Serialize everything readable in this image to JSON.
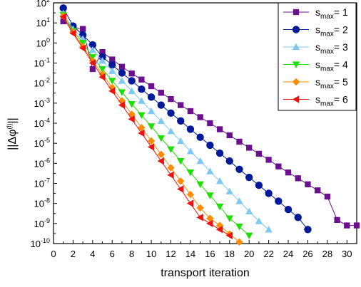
{
  "chart_data": {
    "type": "scatter",
    "xlabel": "transport iteration",
    "ylabel": "||Δφ(l)||",
    "ylabel_base": "||Δφ",
    "ylabel_sup": "(l)",
    "ylabel_end": "||",
    "xlim": [
      0,
      31
    ],
    "ylim_exp": [
      -10,
      2
    ],
    "yscale": "log",
    "x_ticks": [
      "0",
      "2",
      "4",
      "6",
      "8",
      "10",
      "12",
      "14",
      "16",
      "18",
      "20",
      "22",
      "24",
      "26",
      "28",
      "30"
    ],
    "y_tick_base": "10",
    "y_tick_exps": [
      "-10",
      "-9",
      "-8",
      "-7",
      "-6",
      "-5",
      "-4",
      "-3",
      "-2",
      "-1",
      "0",
      "1",
      "2"
    ],
    "grid": false,
    "legend_position": "top-right",
    "series": [
      {
        "name": "smax= 1",
        "label_main": "s",
        "label_sub": "max",
        "label_tail": "= 1",
        "color": "#6a0f8e",
        "marker": "square",
        "x": [
          1,
          2,
          3,
          4,
          5,
          6,
          7,
          8,
          9,
          10,
          11,
          12,
          13,
          14,
          15,
          16,
          17,
          18,
          19,
          20,
          21,
          22,
          23,
          24,
          25,
          26,
          27,
          28,
          29,
          30,
          31
        ],
        "y": [
          12.0,
          6.0,
          5.0,
          0.05,
          0.35,
          0.15,
          0.065,
          0.03,
          0.015,
          0.007,
          0.0033,
          0.0016,
          0.0008,
          0.0004,
          0.0002,
          0.0001,
          5e-05,
          2.5e-05,
          1.2e-05,
          6e-06,
          3e-06,
          1.5e-06,
          7e-07,
          3.5e-07,
          1.8e-07,
          9e-08,
          4.5e-08,
          2.2e-08,
          1.5e-09,
          8e-10,
          8e-10
        ]
      },
      {
        "name": "smax= 2",
        "label_main": "s",
        "label_sub": "max",
        "label_tail": "= 2",
        "color": "#001a99",
        "marker": "circle",
        "x": [
          1,
          2,
          3,
          4,
          5,
          6,
          7,
          8,
          9,
          10,
          11,
          12,
          13,
          14,
          15,
          16,
          17,
          18,
          19,
          20,
          21,
          22,
          23,
          24,
          25,
          26
        ],
        "y": [
          55.0,
          7.0,
          2.5,
          0.8,
          0.2,
          0.08,
          0.032,
          0.013,
          0.005,
          0.002,
          0.0008,
          0.00032,
          0.00013,
          5e-05,
          2e-05,
          8e-06,
          3.2e-06,
          1.3e-06,
          5e-07,
          2e-07,
          8e-08,
          3.2e-08,
          1.3e-08,
          5e-09,
          2e-09,
          5e-10
        ]
      },
      {
        "name": "smax= 3",
        "label_main": "s",
        "label_sub": "max",
        "label_tail": "= 3",
        "color": "#7ec8f4",
        "marker": "triangle-up",
        "x": [
          1,
          2,
          3,
          4,
          5,
          6,
          7,
          8,
          9,
          10,
          11,
          12,
          13,
          14,
          15,
          16,
          17,
          18,
          19,
          20,
          21,
          22
        ],
        "y": [
          30.0,
          5.0,
          1.6,
          0.45,
          0.13,
          0.04,
          0.013,
          0.004,
          0.0013,
          0.0004,
          0.00013,
          4e-05,
          1.3e-05,
          4e-06,
          1.3e-06,
          4e-07,
          1.3e-07,
          4e-08,
          1.3e-08,
          4e-09,
          1.3e-09,
          5e-10
        ]
      },
      {
        "name": "smax= 4",
        "label_main": "s",
        "label_sub": "max",
        "label_tail": "= 4",
        "color": "#1ee000",
        "marker": "triangle-down",
        "x": [
          1,
          2,
          3,
          4,
          5,
          6,
          7,
          8,
          9,
          10,
          11,
          12,
          13,
          14,
          15,
          16,
          17,
          18,
          19,
          20
        ],
        "y": [
          25.0,
          4.0,
          1.0,
          0.2,
          0.05,
          0.013,
          0.0035,
          0.0009,
          0.00025,
          7e-05,
          1.8e-05,
          5e-06,
          1.3e-06,
          3.5e-07,
          9e-08,
          2.5e-08,
          7e-09,
          1.8e-09,
          7e-10,
          2.5e-10
        ]
      },
      {
        "name": "smax= 5",
        "label_main": "s",
        "label_sub": "max",
        "label_tail": "= 5",
        "color": "#ff8c00",
        "marker": "diamond",
        "x": [
          1,
          2,
          3,
          4,
          5,
          6,
          7,
          8,
          9,
          10,
          11,
          12,
          13,
          14,
          15,
          16,
          17,
          18,
          19
        ],
        "y": [
          22.0,
          3.5,
          0.65,
          0.13,
          0.028,
          0.006,
          0.0013,
          0.00028,
          6e-05,
          1.3e-05,
          2.8e-06,
          6e-07,
          1.3e-07,
          2.8e-08,
          6e-09,
          1.8e-09,
          8e-10,
          3e-10,
          1.2e-10
        ]
      },
      {
        "name": "smax= 6",
        "label_main": "s",
        "label_sub": "max",
        "label_tail": "= 6",
        "color": "#ee1111",
        "marker": "triangle-left",
        "x": [
          1,
          2,
          3,
          4,
          5,
          6,
          7,
          8,
          9,
          10,
          11,
          12,
          13,
          14,
          15,
          16,
          17,
          18
        ],
        "y": [
          20.0,
          3.0,
          0.55,
          0.1,
          0.02,
          0.004,
          0.0008,
          0.00016,
          3.2e-05,
          6.5e-06,
          1.3e-06,
          2.6e-07,
          5.2e-08,
          1e-08,
          2e-09,
          1e-09,
          5e-10,
          2.5e-10
        ]
      }
    ]
  }
}
